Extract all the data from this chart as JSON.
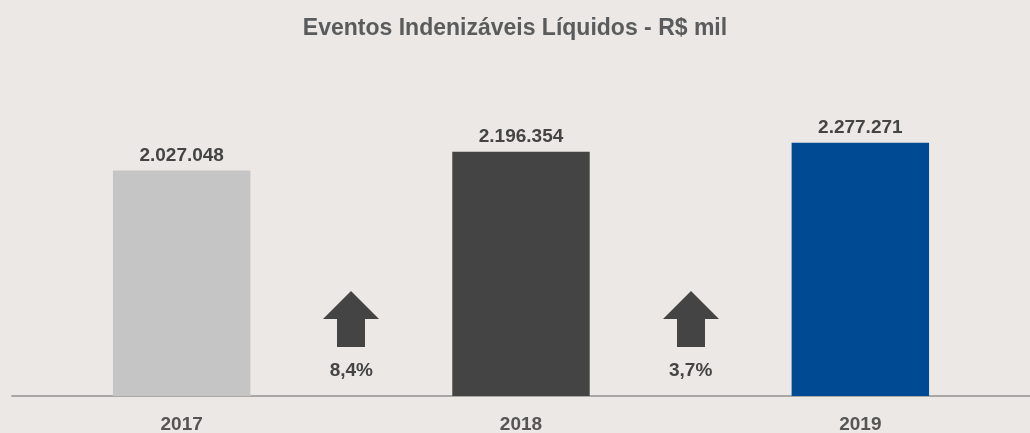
{
  "chart_data": {
    "type": "bar",
    "title": "Eventos Indenizáveis Líquidos - R$ mil",
    "categories": [
      "2017",
      "2018",
      "2019"
    ],
    "values": [
      2027048,
      2196354,
      2277271
    ],
    "colors": [
      "#c6c5c6",
      "#444444",
      "#004a94"
    ],
    "value_labels": [
      "2.027.048",
      "2.196.354",
      "2.277.271"
    ],
    "annotations": [
      "8,4%",
      "3,7%"
    ]
  }
}
